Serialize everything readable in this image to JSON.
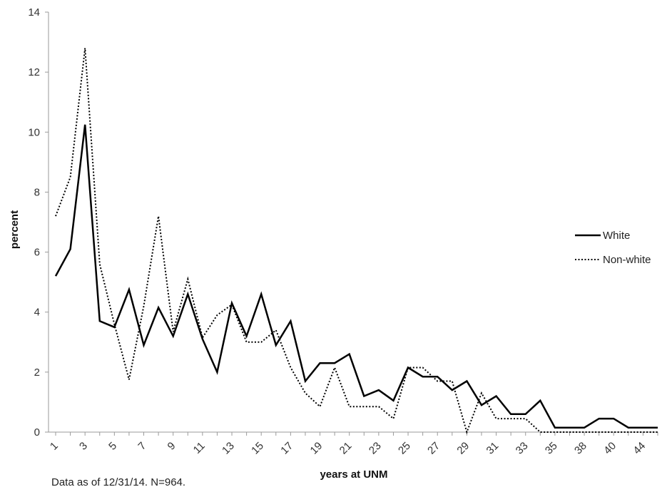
{
  "chart_data": {
    "type": "line",
    "title": "",
    "xlabel": "years at UNM",
    "ylabel": "percent",
    "ylim": [
      0,
      14
    ],
    "y_ticks": [
      0,
      2,
      4,
      6,
      8,
      10,
      12,
      14
    ],
    "grid": false,
    "legend_position": "right",
    "x_tick_labels": [
      "1",
      "3",
      "5",
      "7",
      "9",
      "11",
      "13",
      "15",
      "17",
      "19",
      "21",
      "23",
      "25",
      "27",
      "29",
      "31",
      "33",
      "35",
      "38",
      "40",
      "44"
    ],
    "categories": [
      "1",
      "2",
      "3",
      "4",
      "5",
      "6",
      "7",
      "8",
      "9",
      "10",
      "11",
      "12",
      "13",
      "14",
      "15",
      "16",
      "17",
      "18",
      "19",
      "20",
      "21",
      "22",
      "23",
      "24",
      "25",
      "26",
      "27",
      "28",
      "29",
      "30",
      "31",
      "32",
      "33",
      "34",
      "35",
      "37",
      "38",
      "39",
      "40",
      "42",
      "44",
      "45"
    ],
    "series": [
      {
        "name": "White",
        "style": "solid",
        "color": "#000000",
        "values": [
          5.2,
          6.1,
          10.25,
          3.7,
          3.5,
          4.75,
          2.9,
          4.15,
          3.2,
          4.6,
          3.1,
          2.0,
          4.3,
          3.2,
          4.6,
          2.9,
          3.7,
          1.7,
          2.3,
          2.3,
          2.6,
          1.2,
          1.4,
          1.05,
          2.15,
          1.85,
          1.85,
          1.4,
          1.7,
          0.9,
          1.2,
          0.6,
          0.6,
          1.05,
          0.15,
          0.15,
          0.15,
          0.45,
          0.45,
          0.15,
          0.15,
          0.15
        ]
      },
      {
        "name": "Non-white",
        "style": "dotted",
        "color": "#000000",
        "values": [
          7.2,
          8.5,
          12.8,
          5.6,
          3.6,
          1.75,
          4.2,
          7.2,
          3.35,
          5.1,
          3.15,
          3.9,
          4.25,
          3.0,
          3.0,
          3.4,
          2.15,
          1.3,
          0.85,
          2.15,
          0.85,
          0.85,
          0.85,
          0.45,
          2.15,
          2.15,
          1.7,
          1.7,
          0.0,
          1.3,
          0.45,
          0.45,
          0.45,
          0.0,
          0.0,
          0.0,
          0.0,
          0.0,
          0.0,
          0.0,
          0.0,
          0.0
        ]
      }
    ]
  },
  "footnote": "Data as of 12/31/14. N=964."
}
